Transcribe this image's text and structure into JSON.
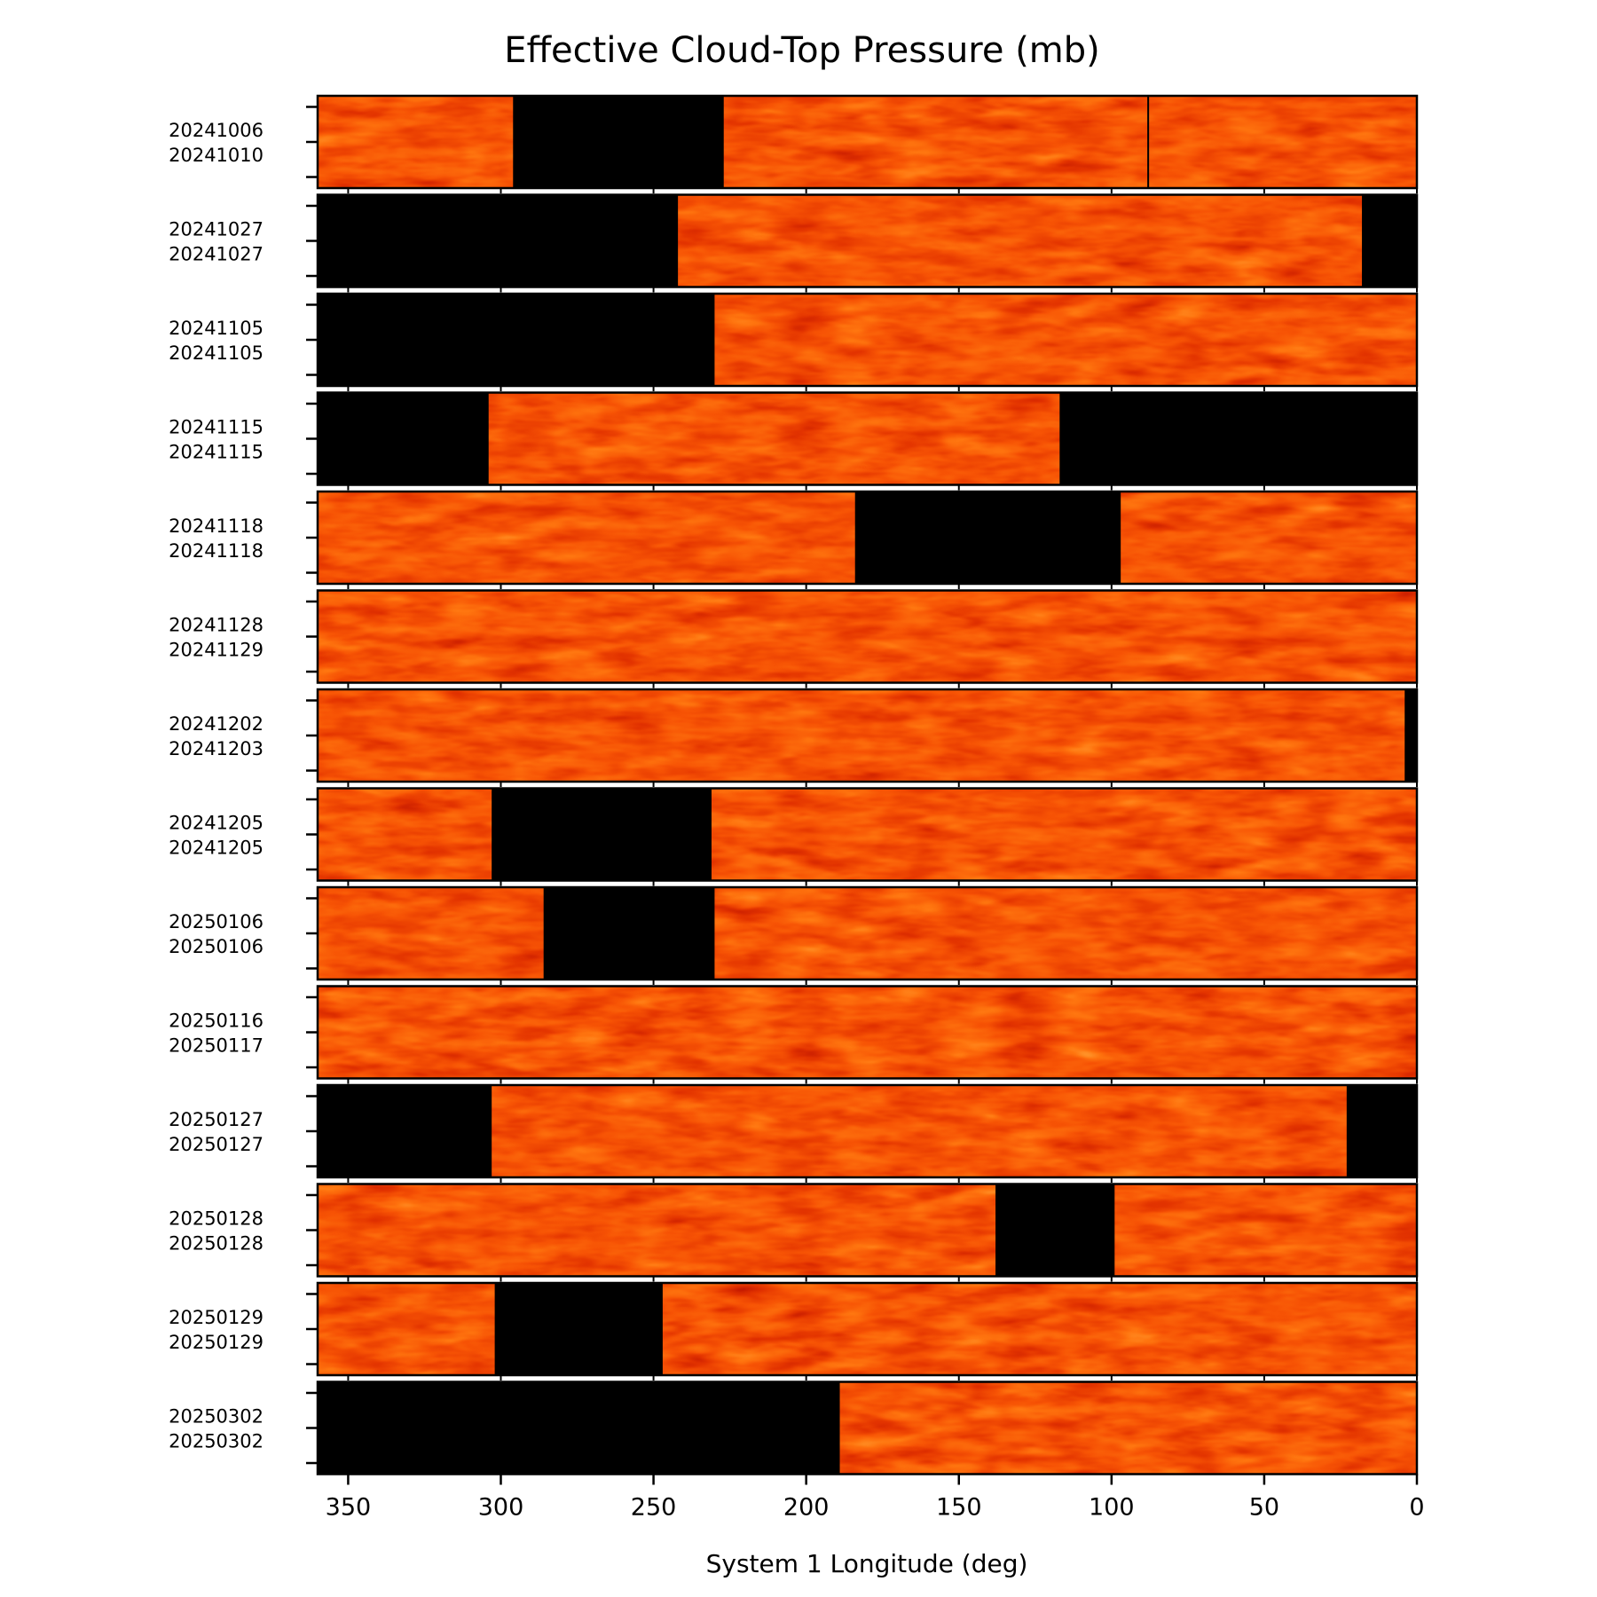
{
  "chart_data": {
    "type": "heatmap",
    "title": "Effective Cloud-Top Pressure (mb)",
    "xlabel": "System 1 Longitude (deg)",
    "xlim": [
      360,
      0
    ],
    "xticks": [
      350,
      300,
      250,
      200,
      150,
      100,
      50,
      0
    ],
    "xtick_labels": [
      "350",
      "300",
      "250",
      "200",
      "150",
      "100",
      "50",
      "0"
    ],
    "colormap": "gist_heat",
    "missing_color": "#000000",
    "panels": [
      {
        "start": "20241006",
        "end": "20241010",
        "missing_lon": [
          [
            296,
            227
          ]
        ],
        "seam_lon": [
          88
        ]
      },
      {
        "start": "20241027",
        "end": "20241027",
        "missing_lon": [
          [
            360,
            242
          ],
          [
            18,
            0
          ]
        ],
        "seam_lon": []
      },
      {
        "start": "20241105",
        "end": "20241105",
        "missing_lon": [
          [
            360,
            230
          ]
        ],
        "seam_lon": []
      },
      {
        "start": "20241115",
        "end": "20241115",
        "missing_lon": [
          [
            360,
            304
          ],
          [
            117,
            0
          ]
        ],
        "seam_lon": []
      },
      {
        "start": "20241118",
        "end": "20241118",
        "missing_lon": [
          [
            184,
            97
          ]
        ],
        "seam_lon": []
      },
      {
        "start": "20241128",
        "end": "20241129",
        "missing_lon": [],
        "seam_lon": []
      },
      {
        "start": "20241202",
        "end": "20241203",
        "missing_lon": [
          [
            4,
            0
          ]
        ],
        "seam_lon": []
      },
      {
        "start": "20241205",
        "end": "20241205",
        "missing_lon": [
          [
            303,
            231
          ]
        ],
        "seam_lon": []
      },
      {
        "start": "20250106",
        "end": "20250106",
        "missing_lon": [
          [
            286,
            230
          ]
        ],
        "seam_lon": []
      },
      {
        "start": "20250116",
        "end": "20250117",
        "missing_lon": [],
        "seam_lon": []
      },
      {
        "start": "20250127",
        "end": "20250127",
        "missing_lon": [
          [
            360,
            303
          ],
          [
            23,
            0
          ]
        ],
        "seam_lon": []
      },
      {
        "start": "20250128",
        "end": "20250128",
        "missing_lon": [
          [
            138,
            99
          ]
        ],
        "seam_lon": []
      },
      {
        "start": "20250129",
        "end": "20250129",
        "missing_lon": [
          [
            302,
            247
          ]
        ],
        "seam_lon": []
      },
      {
        "start": "20250302",
        "end": "20250302",
        "missing_lon": [
          [
            360,
            189
          ]
        ],
        "seam_lon": []
      }
    ]
  }
}
